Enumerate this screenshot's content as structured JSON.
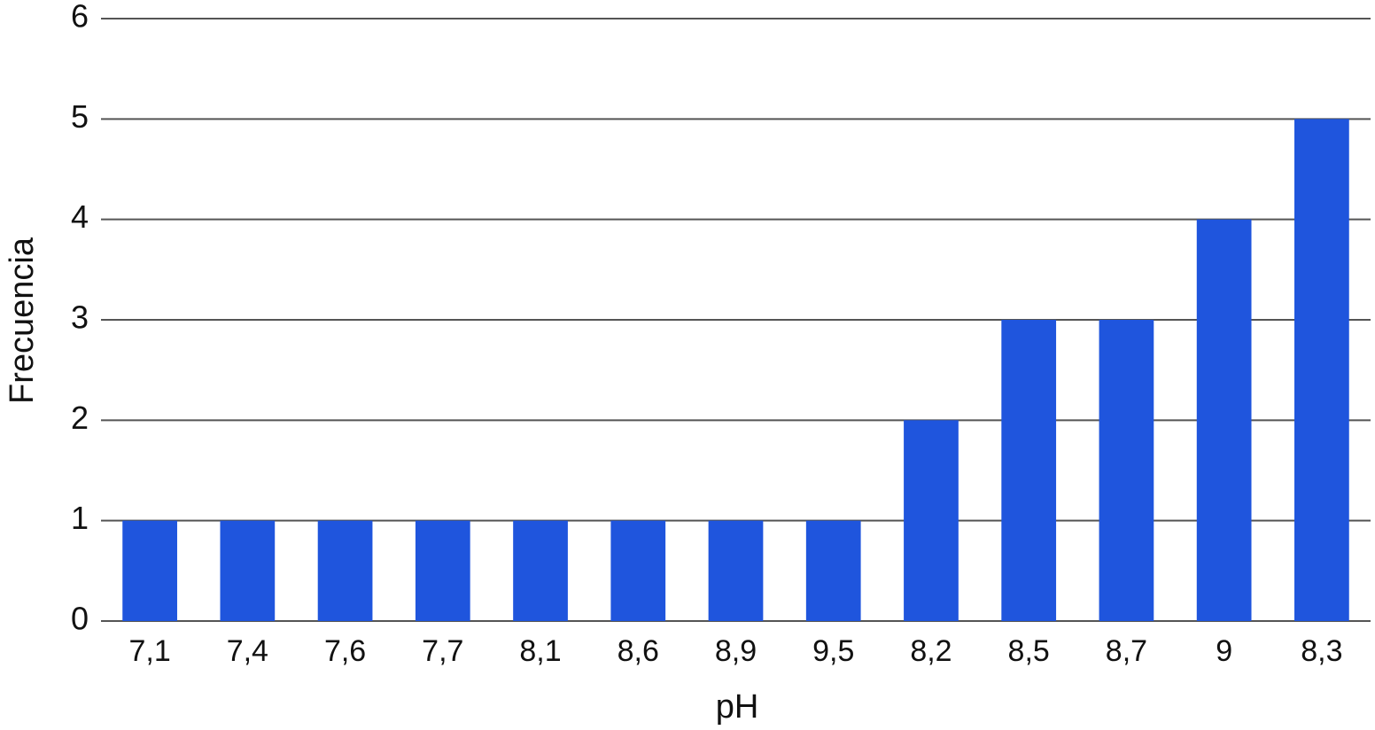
{
  "chart_data": {
    "type": "bar",
    "x_label": "pH",
    "y_label": "Frecuencia",
    "categories": [
      "7,1",
      "7,4",
      "7,6",
      "7,7",
      "8,1",
      "8,6",
      "8,9",
      "9,5",
      "8,2",
      "8,5",
      "8,7",
      "9",
      "8,3"
    ],
    "values": [
      1,
      1,
      1,
      1,
      1,
      1,
      1,
      1,
      2,
      3,
      3,
      4,
      5
    ],
    "color": "#1f55dd",
    "ylim": [
      0,
      6
    ],
    "yticks": [
      0,
      1,
      2,
      3,
      4,
      5,
      6
    ],
    "grid": true
  }
}
